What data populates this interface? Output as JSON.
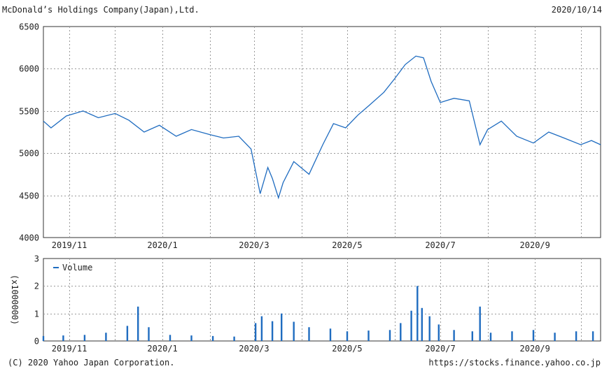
{
  "header": {
    "company": "McDonald’s Holdings Company(Japan),Ltd.",
    "date": "2020/10/14"
  },
  "footer": {
    "copyright": "(C) 2020 Yahoo Japan Corporation.",
    "url": "https://stocks.finance.yahoo.co.jp"
  },
  "colors": {
    "line": "#1f6cc0",
    "bar": "#1f6cc0",
    "grid": "#9a9a9a",
    "frame": "#333333"
  },
  "chart_data": [
    {
      "type": "line",
      "title": "McDonald’s Holdings Company(Japan),Ltd.",
      "xlabel": "",
      "ylabel": "",
      "ylim": [
        4000,
        6500
      ],
      "yticks": [
        4000,
        4500,
        5000,
        5500,
        6000,
        6500
      ],
      "xlim": [
        "2019-10-15",
        "2020-10-14"
      ],
      "xtick_labels": [
        "2019/11",
        "2020/1",
        "2020/3",
        "2020/5",
        "2020/7",
        "2020/9"
      ],
      "grid": true,
      "series": [
        {
          "x": [
            "2019-10-15",
            "2019-10-20",
            "2019-10-30",
            "2019-11-10",
            "2019-11-20",
            "2019-12-01",
            "2019-12-10",
            "2019-12-20",
            "2019-12-30",
            "2020-01-10",
            "2020-01-20",
            "2020-02-01",
            "2020-02-10",
            "2020-02-20",
            "2020-02-28",
            "2020-03-05",
            "2020-03-10",
            "2020-03-13",
            "2020-03-17",
            "2020-03-20",
            "2020-03-27",
            "2020-04-06",
            "2020-04-15",
            "2020-04-22",
            "2020-04-30",
            "2020-05-08",
            "2020-05-15",
            "2020-05-25",
            "2020-06-01",
            "2020-06-08",
            "2020-06-15",
            "2020-06-20",
            "2020-06-25",
            "2020-07-01",
            "2020-07-10",
            "2020-07-20",
            "2020-07-27",
            "2020-08-01",
            "2020-08-10",
            "2020-08-20",
            "2020-08-31",
            "2020-09-10",
            "2020-09-20",
            "2020-10-01",
            "2020-10-08",
            "2020-10-14"
          ],
          "values": [
            5380,
            5300,
            5440,
            5500,
            5420,
            5470,
            5390,
            5250,
            5330,
            5200,
            5280,
            5220,
            5180,
            5200,
            5050,
            4520,
            4830,
            4700,
            4470,
            4650,
            4900,
            4750,
            5100,
            5350,
            5300,
            5450,
            5560,
            5720,
            5880,
            6050,
            6150,
            6130,
            5850,
            5600,
            5650,
            5620,
            5100,
            5280,
            5380,
            5200,
            5120,
            5250,
            5180,
            5100,
            5150,
            5100
          ]
        }
      ]
    },
    {
      "type": "bar",
      "xlabel": "",
      "ylabel": "(x1000000)",
      "ylim": [
        0,
        3
      ],
      "yticks": [
        0,
        1,
        2,
        3
      ],
      "xtick_labels": [
        "2019/11",
        "2020/1",
        "2020/3",
        "2020/5",
        "2020/7",
        "2020/9"
      ],
      "legend": {
        "label": "Volume",
        "position": "top-left"
      },
      "grid": true,
      "series": [
        {
          "name": "Volume",
          "x": [
            "2019-10-15",
            "2019-10-28",
            "2019-11-11",
            "2019-11-25",
            "2019-12-09",
            "2019-12-16",
            "2019-12-23",
            "2020-01-06",
            "2020-01-20",
            "2020-02-03",
            "2020-02-17",
            "2020-03-02",
            "2020-03-06",
            "2020-03-13",
            "2020-03-19",
            "2020-03-27",
            "2020-04-06",
            "2020-04-20",
            "2020-05-01",
            "2020-05-15",
            "2020-05-29",
            "2020-06-05",
            "2020-06-12",
            "2020-06-16",
            "2020-06-19",
            "2020-06-24",
            "2020-06-30",
            "2020-07-10",
            "2020-07-22",
            "2020-07-27",
            "2020-08-03",
            "2020-08-17",
            "2020-08-31",
            "2020-09-14",
            "2020-09-28",
            "2020-10-09"
          ],
          "values": [
            0.18,
            0.2,
            0.22,
            0.3,
            0.55,
            1.25,
            0.5,
            0.22,
            0.2,
            0.18,
            0.16,
            0.65,
            0.9,
            0.72,
            1.0,
            0.7,
            0.5,
            0.45,
            0.35,
            0.38,
            0.4,
            0.65,
            1.1,
            2.0,
            1.2,
            0.9,
            0.6,
            0.4,
            0.35,
            1.25,
            0.3,
            0.35,
            0.4,
            0.3,
            0.35,
            0.35
          ]
        }
      ]
    }
  ]
}
